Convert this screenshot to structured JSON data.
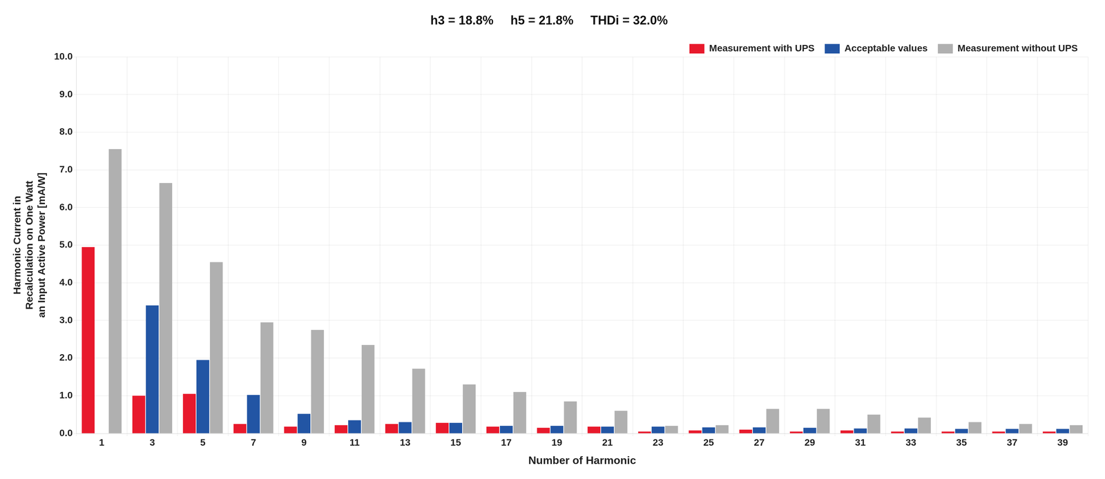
{
  "chart_data": {
    "type": "bar",
    "title": "h3 = 18.8%     h5 = 21.8%     THDi = 32.0%",
    "xlabel": "Number of Harmonic",
    "ylabel": "Harmonic Current in\nRecalculation on One Watt\nan Input Active Power [mA/W]",
    "categories": [
      "1",
      "3",
      "5",
      "7",
      "9",
      "11",
      "13",
      "15",
      "17",
      "19",
      "21",
      "23",
      "25",
      "27",
      "29",
      "31",
      "33",
      "35",
      "37",
      "39"
    ],
    "series": [
      {
        "name": "Measurement with UPS",
        "color": "#e8192c",
        "values": [
          4.95,
          1.0,
          1.05,
          0.25,
          0.18,
          0.22,
          0.25,
          0.28,
          0.18,
          0.15,
          0.18,
          0.05,
          0.08,
          0.1,
          0.05,
          0.08,
          0.05,
          0.05,
          0.05,
          0.05
        ]
      },
      {
        "name": "Acceptable values",
        "color": "#2255a4",
        "values": [
          0.0,
          3.4,
          1.95,
          1.02,
          0.52,
          0.35,
          0.3,
          0.28,
          0.2,
          0.2,
          0.18,
          0.18,
          0.16,
          0.16,
          0.15,
          0.13,
          0.13,
          0.12,
          0.12,
          0.12
        ]
      },
      {
        "name": "Measurement without UPS",
        "color": "#b0b0b0",
        "values": [
          7.55,
          6.65,
          4.55,
          2.95,
          2.75,
          2.35,
          1.72,
          1.3,
          1.1,
          0.85,
          0.6,
          0.2,
          0.22,
          0.65,
          0.65,
          0.5,
          0.42,
          0.3,
          0.25,
          0.22
        ]
      }
    ],
    "ylim": [
      0,
      10.0
    ],
    "yticks": [
      {
        "value": 0,
        "label": "0.0"
      },
      {
        "value": 1,
        "label": "1.0"
      },
      {
        "value": 2,
        "label": "2.0"
      },
      {
        "value": 3,
        "label": "3.0"
      },
      {
        "value": 4,
        "label": "4.0"
      },
      {
        "value": 5,
        "label": "5.0"
      },
      {
        "value": 6,
        "label": "6.0"
      },
      {
        "value": 7,
        "label": "7.0"
      },
      {
        "value": 8,
        "label": "8.0"
      },
      {
        "value": 9,
        "label": "9.0"
      },
      {
        "value": 10,
        "label": "10.0"
      }
    ],
    "grid": true,
    "legend": "upper right"
  }
}
